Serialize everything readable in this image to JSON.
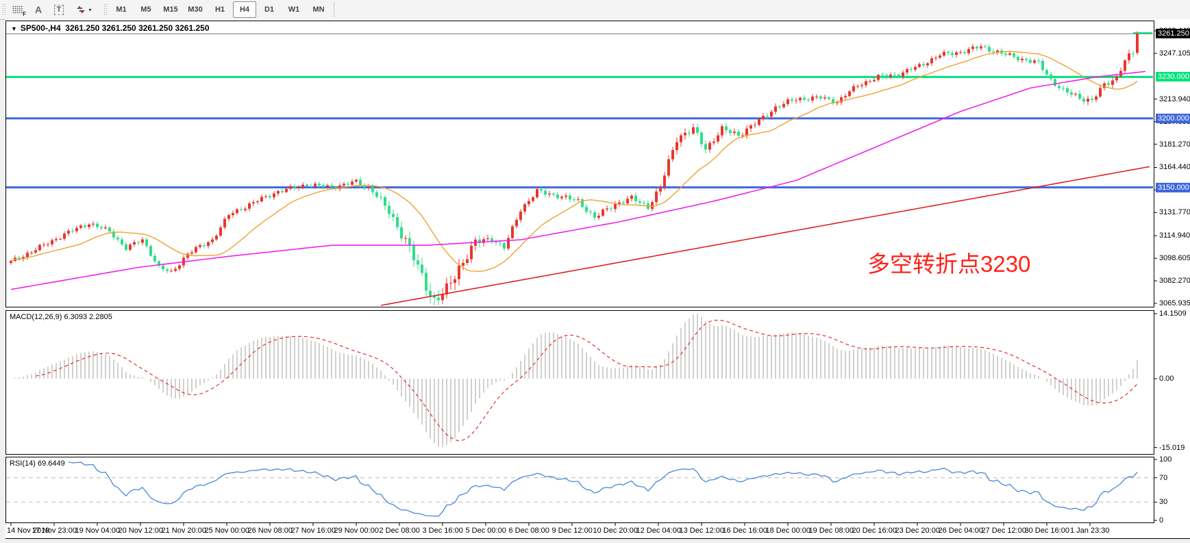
{
  "toolbar": {
    "tools": [
      {
        "name": "fibonacci-grid-tool",
        "label": "F"
      },
      {
        "name": "text-tool",
        "label": "A"
      },
      {
        "name": "text-label-tool",
        "label": "T"
      },
      {
        "name": "arrows-tool",
        "label": "▾"
      }
    ],
    "timeframes": [
      {
        "label": "M1",
        "active": false
      },
      {
        "label": "M5",
        "active": false
      },
      {
        "label": "M15",
        "active": false
      },
      {
        "label": "M30",
        "active": false
      },
      {
        "label": "H1",
        "active": false
      },
      {
        "label": "H4",
        "active": true
      },
      {
        "label": "D1",
        "active": false
      },
      {
        "label": "W1",
        "active": false
      },
      {
        "label": "MN",
        "active": false
      }
    ]
  },
  "chart": {
    "title": {
      "symbol": "SP500-,H4",
      "quotes": "3261.250 3261.250 3261.250 3261.250"
    },
    "annotation": {
      "text": "多空转折点3230",
      "color": "#ff2218"
    },
    "indicator_labels": {
      "macd": "MACD(12,26,9) 6.3093 2.2805",
      "rsi": "RSI(14) 69.6449"
    },
    "price_axis": {
      "ticks": [
        "3263.440",
        "3247.105",
        "3213.940",
        "3197.605",
        "3181.270",
        "3164.440",
        "3148.105",
        "3131.770",
        "3114.940",
        "3098.605",
        "3082.270",
        "3065.935"
      ],
      "boxes": [
        {
          "label": "3261.250",
          "price": 3261.25,
          "bg": "#000000",
          "fg": "#ffffff",
          "type": "current"
        },
        {
          "label": "3230.000",
          "price": 3230.0,
          "bg": "#00e27a",
          "fg": "#ffffff",
          "type": "hline"
        },
        {
          "label": "3200.000",
          "price": 3200.0,
          "bg": "#3e68dd",
          "fg": "#ffffff",
          "type": "hline"
        },
        {
          "label": "3150.000",
          "price": 3150.0,
          "bg": "#3e68dd",
          "fg": "#ffffff",
          "type": "hline"
        }
      ]
    },
    "time_axis": {
      "labels": [
        "14 Nov 2019",
        "17 Nov 23:00",
        "19 Nov 04:00",
        "20 Nov 12:00",
        "21 Nov 20:00",
        "25 Nov 00:00",
        "26 Nov 08:00",
        "27 Nov 16:00",
        "29 Nov 00:00",
        "2 Dec 08:00",
        "3 Dec 16:00",
        "5 Dec 00:00",
        "6 Dec 08:00",
        "9 Dec 12:00",
        "10 Dec 20:00",
        "12 Dec 04:00",
        "13 Dec 12:00",
        "16 Dec 16:00",
        "18 Dec 00:00",
        "19 Dec 08:00",
        "20 Dec 16:00",
        "23 Dec 20:00",
        "26 Dec 04:00",
        "27 Dec 12:00",
        "30 Dec 16:00",
        "1 Jan 23:30"
      ]
    },
    "colors": {
      "candle_up": "#e8372c",
      "candle_down": "#31dd8b",
      "hline_green": "#00e27a",
      "hline_blue": "#3e68dd",
      "ma_fast": "#f0a030",
      "ma_mid": "#ee22ee",
      "ma_slow": "#dd1f1f",
      "current_price_line": "#7a7a7a",
      "macd_hist": "#bcbcbc",
      "macd_signal": "#e03030",
      "rsi_line": "#4a86d8",
      "rsi_levels": "#b8b8b8"
    }
  },
  "chart_data": {
    "type": "candlestick+indicators",
    "symbol": "SP500-",
    "timeframe": "H4",
    "bars_count": 275,
    "visible_price_range": [
      3063.5,
      3270.4
    ],
    "close_path_anchors": [
      [
        0,
        3096
      ],
      [
        8,
        3108
      ],
      [
        13,
        3116
      ],
      [
        19,
        3124
      ],
      [
        24,
        3118
      ],
      [
        28,
        3106
      ],
      [
        32,
        3112
      ],
      [
        36,
        3092
      ],
      [
        39,
        3088
      ],
      [
        43,
        3102
      ],
      [
        49,
        3112
      ],
      [
        53,
        3130
      ],
      [
        59,
        3139
      ],
      [
        65,
        3147
      ],
      [
        72,
        3152
      ],
      [
        78,
        3150
      ],
      [
        84,
        3154
      ],
      [
        88,
        3148
      ],
      [
        92,
        3132
      ],
      [
        96,
        3112
      ],
      [
        100,
        3085
      ],
      [
        103,
        3068
      ],
      [
        106,
        3075
      ],
      [
        109,
        3092
      ],
      [
        113,
        3110
      ],
      [
        117,
        3113
      ],
      [
        120,
        3106
      ],
      [
        124,
        3134
      ],
      [
        128,
        3147
      ],
      [
        133,
        3144
      ],
      [
        138,
        3140
      ],
      [
        142,
        3128
      ],
      [
        147,
        3138
      ],
      [
        151,
        3142
      ],
      [
        155,
        3136
      ],
      [
        158,
        3150
      ],
      [
        162,
        3186
      ],
      [
        166,
        3192
      ],
      [
        169,
        3178
      ],
      [
        173,
        3192
      ],
      [
        177,
        3188
      ],
      [
        182,
        3198
      ],
      [
        186,
        3208
      ],
      [
        191,
        3214
      ],
      [
        197,
        3215
      ],
      [
        201,
        3212
      ],
      [
        206,
        3224
      ],
      [
        211,
        3230
      ],
      [
        216,
        3232
      ],
      [
        221,
        3238
      ],
      [
        226,
        3246
      ],
      [
        231,
        3248
      ],
      [
        236,
        3252
      ],
      [
        241,
        3247
      ],
      [
        246,
        3243
      ],
      [
        250,
        3240
      ],
      [
        253,
        3228
      ],
      [
        256,
        3220
      ],
      [
        260,
        3215
      ],
      [
        263,
        3213
      ],
      [
        266,
        3224
      ],
      [
        269,
        3230
      ],
      [
        271,
        3242
      ],
      [
        273,
        3247
      ],
      [
        274,
        3261.25
      ]
    ],
    "volatility_anchors": [
      [
        0,
        2.4
      ],
      [
        84,
        2.4
      ],
      [
        92,
        4.5
      ],
      [
        100,
        7
      ],
      [
        107,
        7
      ],
      [
        113,
        4.5
      ],
      [
        120,
        2.6
      ],
      [
        156,
        3
      ],
      [
        162,
        4.5
      ],
      [
        168,
        3.5
      ],
      [
        200,
        2.4
      ],
      [
        248,
        2.6
      ],
      [
        262,
        3.2
      ],
      [
        270,
        3
      ],
      [
        274,
        4
      ]
    ],
    "last_bar": {
      "open": 3247.5,
      "high": 3263.2,
      "low": 3246.0,
      "close": 3261.25
    },
    "current_price": 3261.25,
    "last_tick_marker_price": 3261.9,
    "horizontal_lines": [
      {
        "price": 3230.0,
        "color": "#00e27a"
      },
      {
        "price": 3200.0,
        "color": "#3e68dd"
      },
      {
        "price": 3150.0,
        "color": "#3e68dd"
      }
    ],
    "moving_averages": [
      {
        "name": "fast-ma",
        "color": "#f0a030",
        "type": "sma",
        "period": 18
      },
      {
        "name": "mid-ma",
        "color": "#ee22ee",
        "type": "anchors",
        "points": [
          [
            0,
            3076
          ],
          [
            31,
            3092
          ],
          [
            53,
            3100
          ],
          [
            78,
            3108
          ],
          [
            101,
            3108
          ],
          [
            124,
            3112
          ],
          [
            148,
            3125
          ],
          [
            171,
            3140
          ],
          [
            191,
            3155
          ],
          [
            211,
            3180
          ],
          [
            231,
            3205
          ],
          [
            248,
            3222
          ],
          [
            264,
            3230
          ],
          [
            276,
            3234
          ]
        ]
      },
      {
        "name": "slow-ma",
        "color": "#dd1f1f",
        "type": "anchors",
        "points": [
          [
            78,
            3058
          ],
          [
            277,
            3165
          ]
        ]
      }
    ],
    "macd": {
      "params": [
        12,
        26,
        9
      ],
      "header": "MACD(12,26,9) 6.3093 2.2805",
      "axis_labels": [
        {
          "label": "14.1509",
          "v": 14.1509
        },
        {
          "label": "0.00",
          "v": 0
        },
        {
          "label": "-15.019",
          "v": -15.019
        }
      ],
      "scale_max": 14.1509,
      "scale_min": -15.019
    },
    "rsi": {
      "period": 14,
      "header": "RSI(14) 69.6449",
      "current": 69.6449,
      "axis_labels": [
        {
          "label": "100",
          "v": 100
        },
        {
          "label": "70",
          "v": 70
        },
        {
          "label": "30",
          "v": 30
        },
        {
          "label": "0",
          "v": 0
        }
      ],
      "level_lines": [
        70,
        30
      ]
    }
  }
}
